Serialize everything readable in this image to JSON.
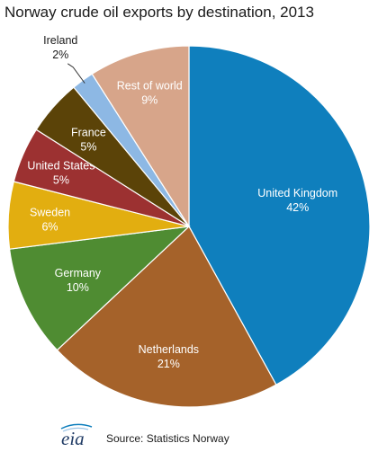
{
  "chart_data": {
    "type": "pie",
    "title": "Norway crude oil exports by destination, 2013",
    "slices": [
      {
        "name": "United Kingdom",
        "value": 42,
        "label": "42%",
        "color": "#0f7fbd",
        "text_color": "#ffffff"
      },
      {
        "name": "Netherlands",
        "value": 21,
        "label": "21%",
        "color": "#a5622a",
        "text_color": "#ffffff"
      },
      {
        "name": "Germany",
        "value": 10,
        "label": "10%",
        "color": "#4f8c32",
        "text_color": "#ffffff"
      },
      {
        "name": "Sweden",
        "value": 6,
        "label": "6%",
        "color": "#e2ae10",
        "text_color": "#ffffff"
      },
      {
        "name": "United States",
        "value": 5,
        "label": "5%",
        "color": "#9c3131",
        "text_color": "#ffffff"
      },
      {
        "name": "France",
        "value": 5,
        "label": "5%",
        "color": "#5b4308",
        "text_color": "#ffffff"
      },
      {
        "name": "Ireland",
        "value": 2,
        "label": "2%",
        "color": "#8db8e4",
        "text_color": "#1a1a1a"
      },
      {
        "name": "Rest of world",
        "value": 9,
        "label": "9%",
        "color": "#d7a58a",
        "text_color": "#ffffff"
      }
    ],
    "start_position": "12 o'clock",
    "direction": "clockwise",
    "legend": "none; labels on slices, Ireland label outside with leader line"
  },
  "footer": {
    "logo_text": "eia",
    "source": "Source:   Statistics Norway"
  }
}
